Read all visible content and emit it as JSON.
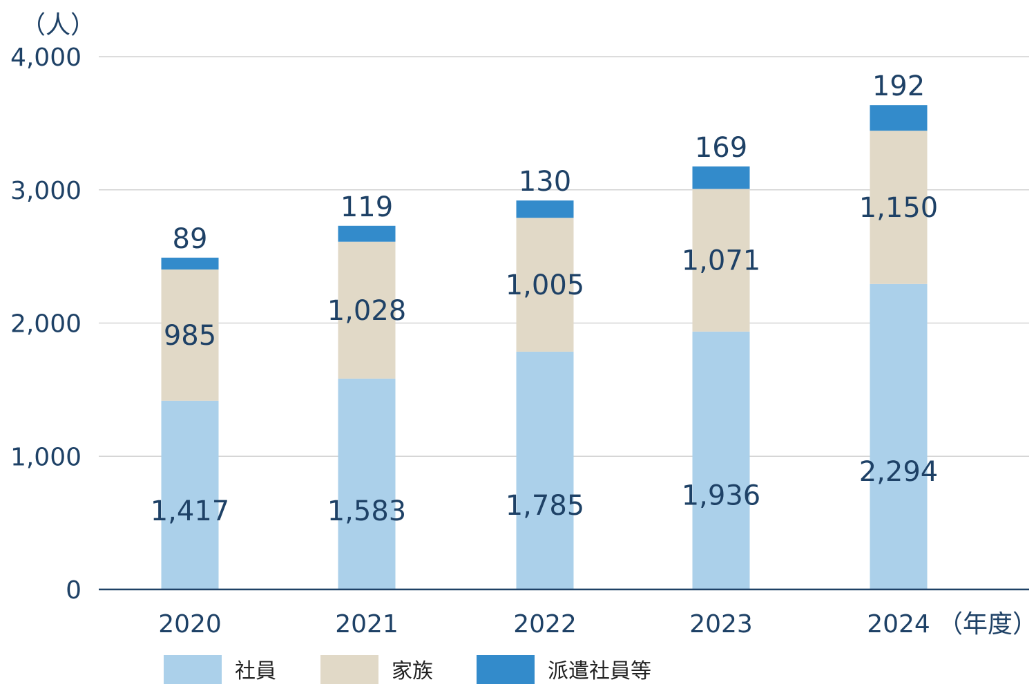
{
  "chart_data": {
    "type": "bar",
    "stacked": true,
    "y_unit_label": "（人）",
    "x_unit_label": "（年度）",
    "categories": [
      "2020",
      "2021",
      "2022",
      "2023",
      "2024"
    ],
    "series": [
      {
        "name": "社員",
        "values": [
          1417,
          1583,
          1785,
          1936,
          2294
        ],
        "color": "#abd0ea"
      },
      {
        "name": "家族",
        "values": [
          985,
          1028,
          1005,
          1071,
          1150
        ],
        "color": "#e1d9c7"
      },
      {
        "name": "派遣社員等",
        "values": [
          89,
          119,
          130,
          169,
          192
        ],
        "color": "#338bcb"
      }
    ],
    "value_labels": [
      [
        "1,417",
        "1,583",
        "1,785",
        "1,936",
        "2,294"
      ],
      [
        "985",
        "1,028",
        "1,005",
        "1,071",
        "1,150"
      ],
      [
        "89",
        "119",
        "130",
        "169",
        "192"
      ]
    ],
    "ylim": [
      0,
      4000
    ],
    "yticks": [
      0,
      1000,
      2000,
      3000,
      4000
    ],
    "ytick_labels": [
      "0",
      "1,000",
      "2,000",
      "3,000",
      "4,000"
    ],
    "grid": true,
    "legend_position": "bottom"
  }
}
